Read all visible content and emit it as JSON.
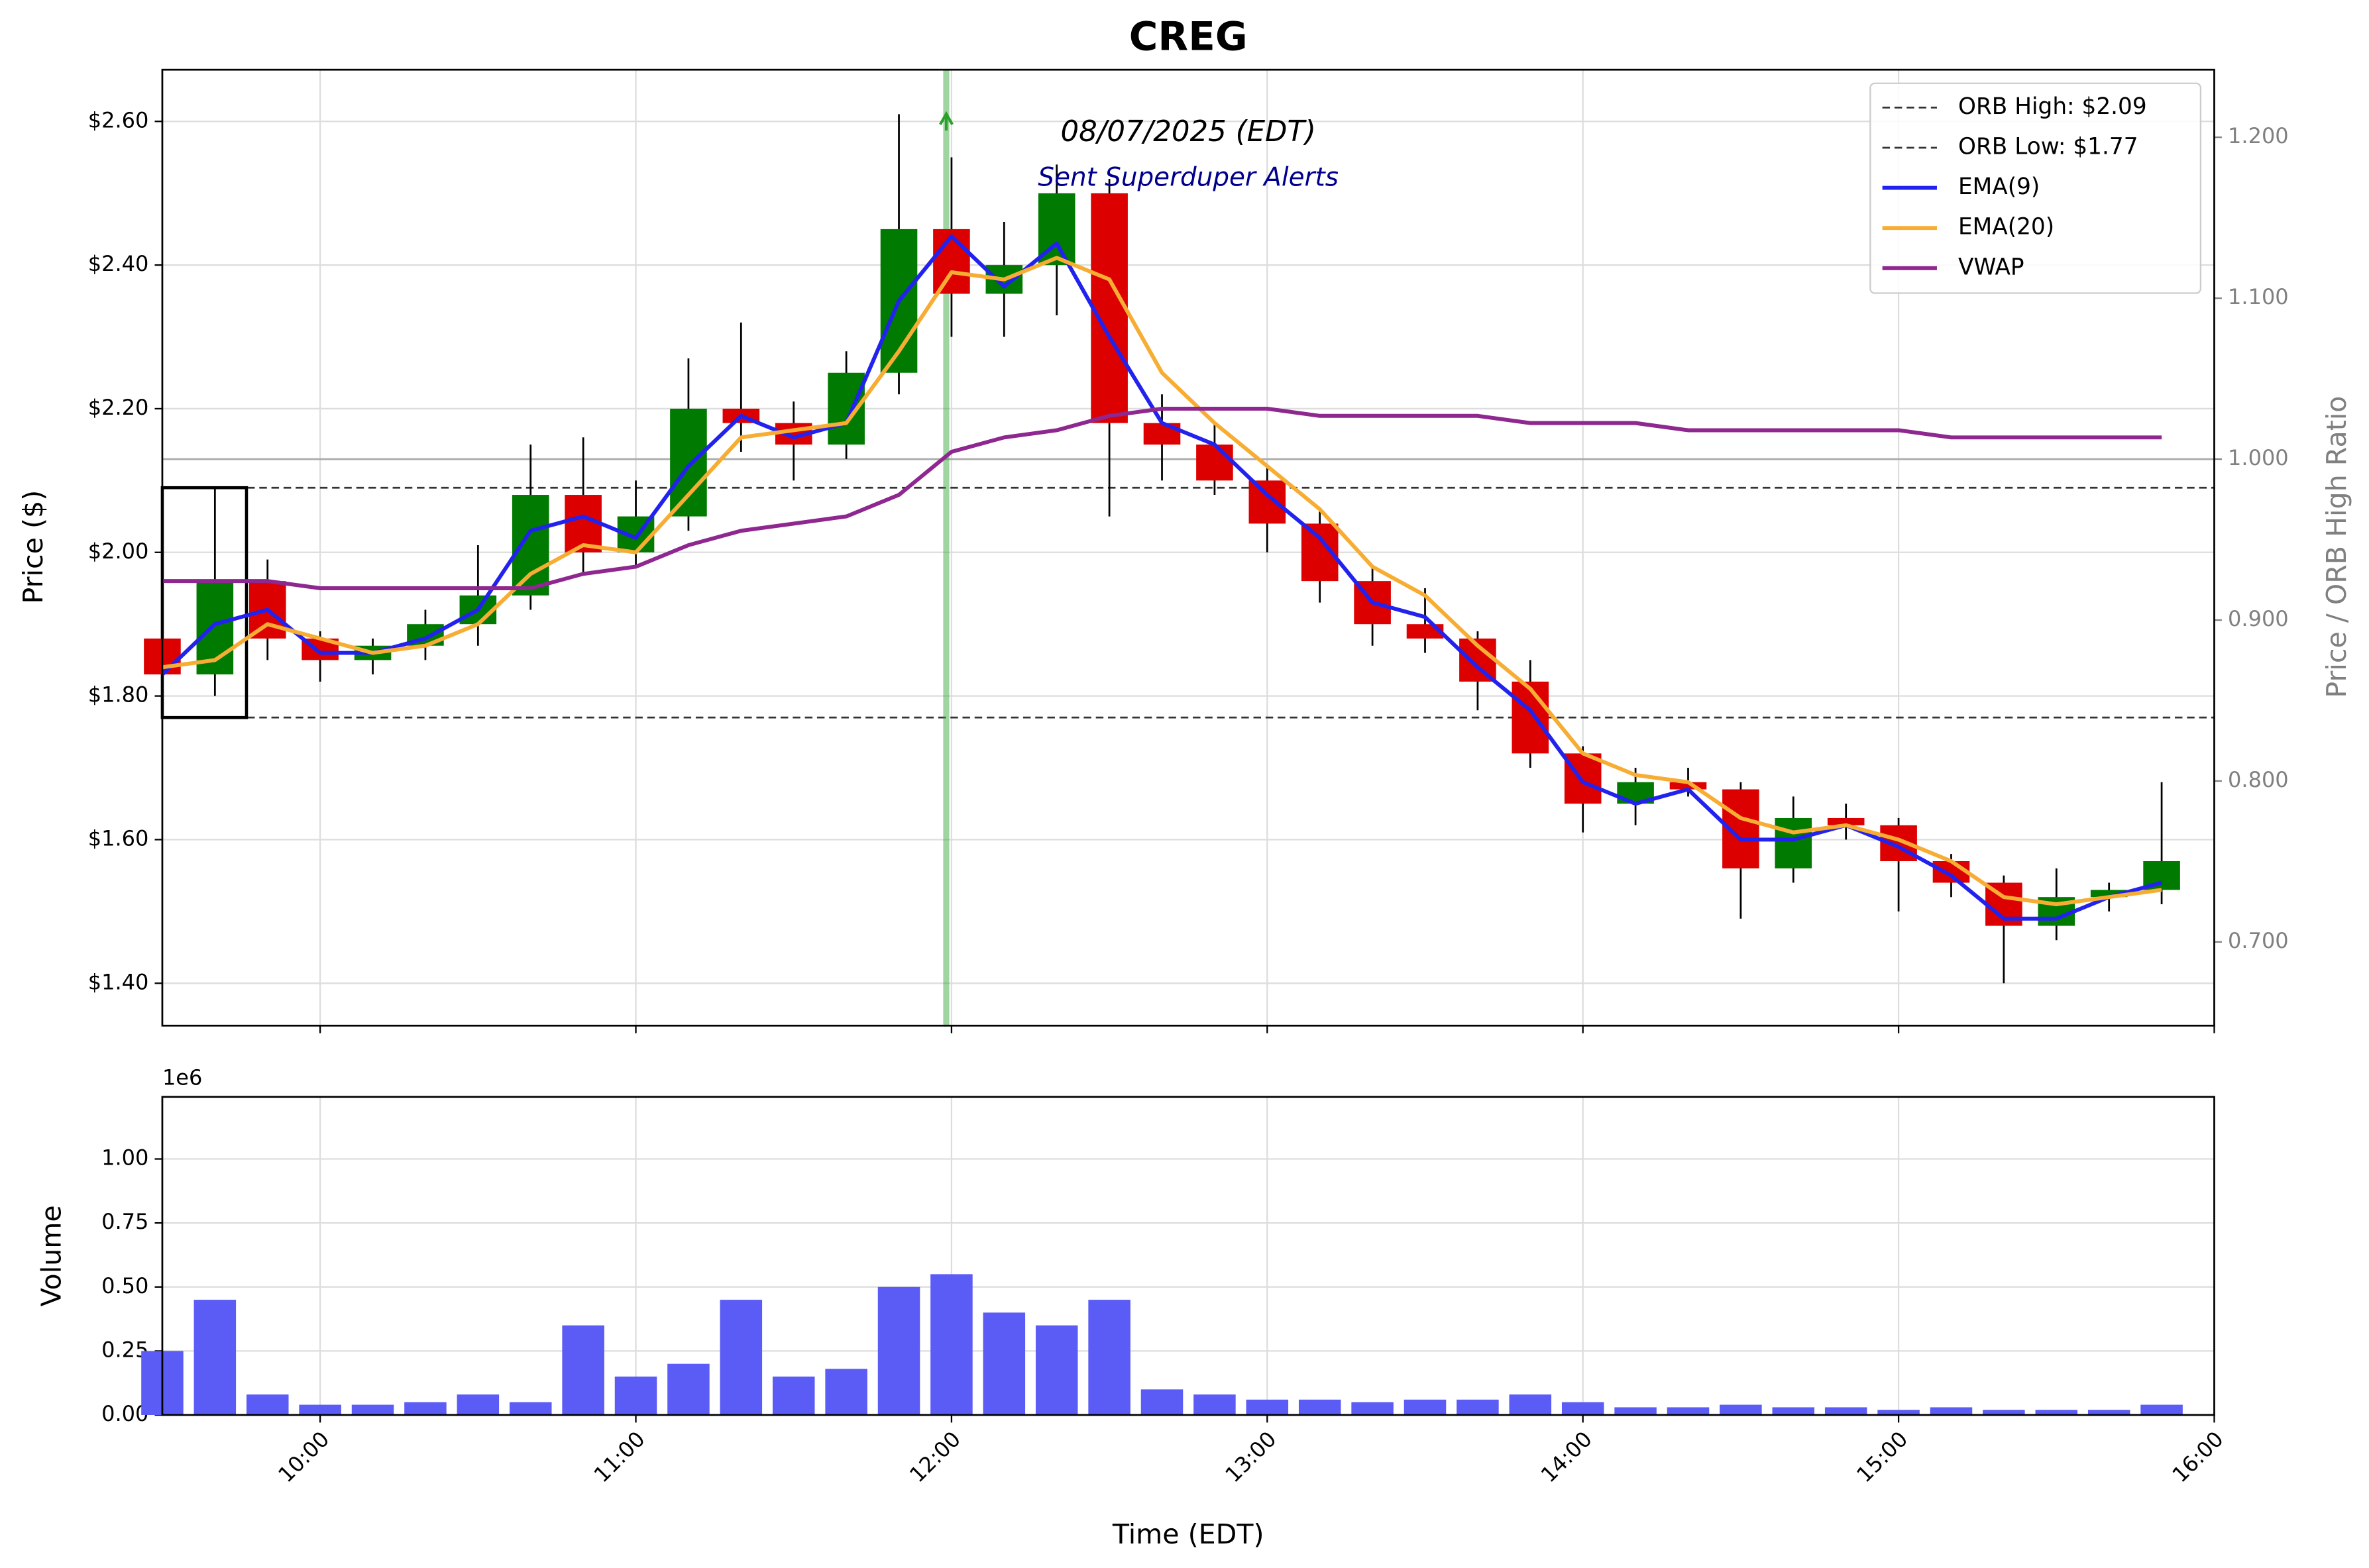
{
  "chart_data": [
    {
      "type": "candlestick",
      "title": "CREG",
      "annotation": "08/07/2025 (EDT)",
      "subannotation": "Sent Superduper Alerts",
      "ylabel": "Price ($)",
      "y2label": "Price / ORB High Ratio",
      "x": [
        "09:30",
        "09:40",
        "09:50",
        "10:00",
        "10:10",
        "10:20",
        "10:30",
        "10:40",
        "10:50",
        "11:00",
        "11:10",
        "11:20",
        "11:30",
        "11:40",
        "11:50",
        "12:00",
        "12:10",
        "12:20",
        "12:30",
        "12:40",
        "12:50",
        "13:00",
        "13:10",
        "13:20",
        "13:30",
        "13:40",
        "13:50",
        "14:00",
        "14:10",
        "14:20",
        "14:30",
        "14:40",
        "14:50",
        "15:00",
        "15:10",
        "15:20",
        "15:30",
        "15:40",
        "15:50"
      ],
      "open": [
        1.88,
        1.83,
        1.96,
        1.88,
        1.85,
        1.87,
        1.9,
        1.94,
        2.08,
        2.0,
        2.05,
        2.2,
        2.18,
        2.15,
        2.25,
        2.45,
        2.36,
        2.4,
        2.5,
        2.18,
        2.15,
        2.1,
        2.04,
        1.96,
        1.9,
        1.88,
        1.82,
        1.72,
        1.65,
        1.68,
        1.67,
        1.56,
        1.63,
        1.62,
        1.57,
        1.54,
        1.48,
        1.52,
        1.53
      ],
      "high": [
        1.93,
        2.09,
        1.99,
        1.89,
        1.88,
        1.92,
        2.01,
        2.15,
        2.16,
        2.1,
        2.27,
        2.32,
        2.21,
        2.28,
        2.61,
        2.55,
        2.46,
        2.54,
        2.52,
        2.22,
        2.18,
        2.12,
        2.06,
        1.98,
        1.95,
        1.89,
        1.85,
        1.73,
        1.7,
        1.7,
        1.68,
        1.66,
        1.65,
        1.63,
        1.58,
        1.55,
        1.56,
        1.54,
        1.68
      ],
      "low": [
        1.8,
        1.8,
        1.85,
        1.82,
        1.83,
        1.85,
        1.87,
        1.92,
        1.97,
        1.98,
        2.03,
        2.14,
        2.1,
        2.13,
        2.22,
        2.3,
        2.3,
        2.33,
        2.05,
        2.1,
        2.08,
        2.0,
        1.93,
        1.87,
        1.86,
        1.78,
        1.7,
        1.61,
        1.62,
        1.66,
        1.49,
        1.54,
        1.6,
        1.5,
        1.52,
        1.4,
        1.46,
        1.5,
        1.51
      ],
      "close": [
        1.83,
        1.96,
        1.88,
        1.85,
        1.87,
        1.9,
        1.94,
        2.08,
        2.0,
        2.05,
        2.2,
        2.18,
        2.15,
        2.25,
        2.45,
        2.36,
        2.4,
        2.5,
        2.18,
        2.15,
        2.1,
        2.04,
        1.96,
        1.9,
        1.88,
        1.82,
        1.72,
        1.65,
        1.68,
        1.67,
        1.56,
        1.63,
        1.62,
        1.57,
        1.54,
        1.48,
        1.52,
        1.53,
        1.57
      ],
      "up_color": "#007a00",
      "down_color": "#dd0000",
      "wick_color": "#000000",
      "series": [
        {
          "name": "EMA(9)",
          "color": "#2222ee",
          "values": [
            1.83,
            1.9,
            1.92,
            1.86,
            1.86,
            1.88,
            1.92,
            2.03,
            2.05,
            2.02,
            2.12,
            2.19,
            2.16,
            2.18,
            2.35,
            2.44,
            2.37,
            2.43,
            2.3,
            2.18,
            2.15,
            2.08,
            2.02,
            1.93,
            1.91,
            1.84,
            1.78,
            1.68,
            1.65,
            1.67,
            1.6,
            1.6,
            1.62,
            1.59,
            1.55,
            1.49,
            1.49,
            1.52,
            1.54
          ]
        },
        {
          "name": "EMA(20)",
          "color": "#f7ad33",
          "values": [
            1.84,
            1.85,
            1.9,
            1.88,
            1.86,
            1.87,
            1.9,
            1.97,
            2.01,
            2.0,
            2.08,
            2.16,
            2.17,
            2.18,
            2.28,
            2.39,
            2.38,
            2.41,
            2.38,
            2.25,
            2.18,
            2.12,
            2.06,
            1.98,
            1.94,
            1.87,
            1.81,
            1.72,
            1.69,
            1.68,
            1.63,
            1.61,
            1.62,
            1.6,
            1.57,
            1.52,
            1.51,
            1.52,
            1.53
          ]
        },
        {
          "name": "VWAP",
          "color": "#8e278f",
          "values": [
            1.96,
            1.96,
            1.96,
            1.95,
            1.95,
            1.95,
            1.95,
            1.95,
            1.97,
            1.98,
            2.01,
            2.03,
            2.04,
            2.05,
            2.08,
            2.14,
            2.16,
            2.17,
            2.19,
            2.2,
            2.2,
            2.2,
            2.19,
            2.19,
            2.19,
            2.19,
            2.18,
            2.18,
            2.18,
            2.17,
            2.17,
            2.17,
            2.17,
            2.17,
            2.16,
            2.16,
            2.16,
            2.16,
            2.16
          ]
        }
      ],
      "hlines": [
        {
          "name": "ORB High: $2.09",
          "value": 2.09,
          "color": "#333333"
        },
        {
          "name": "ORB Low: $1.77",
          "value": 1.77,
          "color": "#333333"
        }
      ],
      "y2_refline": 1.0,
      "orb_box": {
        "x": [
          "09:30",
          "09:46"
        ],
        "y": [
          1.77,
          2.09
        ]
      },
      "alert": {
        "x": "11:59",
        "y": 2.6,
        "color": "#2ca02c"
      },
      "xlim": [
        "09:30",
        "16:00"
      ],
      "xticks": [
        "10:00",
        "11:00",
        "12:00",
        "13:00",
        "14:00",
        "15:00",
        "16:00"
      ],
      "ylim": [
        1.341,
        2.672
      ],
      "yticks": [
        {
          "value": 1.4,
          "label": "$1.40"
        },
        {
          "value": 1.6,
          "label": "$1.60"
        },
        {
          "value": 1.8,
          "label": "$1.80"
        },
        {
          "value": 2.0,
          "label": "$2.00"
        },
        {
          "value": 2.2,
          "label": "$2.20"
        },
        {
          "value": 2.4,
          "label": "$2.40"
        },
        {
          "value": 2.6,
          "label": "$2.60"
        }
      ],
      "y2lim": [
        0.648,
        1.242
      ],
      "y2ticks": [
        {
          "value": 0.7,
          "label": "0.700"
        },
        {
          "value": 0.8,
          "label": "0.800"
        },
        {
          "value": 0.9,
          "label": "0.900"
        },
        {
          "value": 1.0,
          "label": "1.000"
        },
        {
          "value": 1.1,
          "label": "1.100"
        },
        {
          "value": 1.2,
          "label": "1.200"
        }
      ],
      "grid": true,
      "legend": "upper right"
    },
    {
      "type": "bar",
      "xlabel": "Time (EDT)",
      "ylabel": "Volume",
      "offset_text": "1e6",
      "x": [
        "09:30",
        "09:40",
        "09:50",
        "10:00",
        "10:10",
        "10:20",
        "10:30",
        "10:40",
        "10:50",
        "11:00",
        "11:10",
        "11:20",
        "11:30",
        "11:40",
        "11:50",
        "12:00",
        "12:10",
        "12:20",
        "12:30",
        "12:40",
        "12:50",
        "13:00",
        "13:10",
        "13:20",
        "13:30",
        "13:40",
        "13:50",
        "14:00",
        "14:10",
        "14:20",
        "14:30",
        "14:40",
        "14:50",
        "15:00",
        "15:10",
        "15:20",
        "15:30",
        "15:40",
        "15:50"
      ],
      "values": [
        0.25,
        0.45,
        0.08,
        0.04,
        0.04,
        0.05,
        0.08,
        0.05,
        0.35,
        0.15,
        0.2,
        0.45,
        0.15,
        0.18,
        0.5,
        0.55,
        0.4,
        0.35,
        0.45,
        0.1,
        0.08,
        0.06,
        0.06,
        0.05,
        0.06,
        0.06,
        0.08,
        0.05,
        0.03,
        0.03,
        0.04,
        0.03,
        0.03,
        0.02,
        0.03,
        0.02,
        0.02,
        0.02,
        0.04
      ],
      "color": "#5b5bf5",
      "xlim": [
        "09:30",
        "16:00"
      ],
      "xticks": [
        "10:00",
        "11:00",
        "12:00",
        "13:00",
        "14:00",
        "15:00",
        "16:00"
      ],
      "ylim": [
        0,
        1.2426
      ],
      "yticks": [
        {
          "value": 0,
          "label": "0.00"
        },
        {
          "value": 0.25,
          "label": "0.25"
        },
        {
          "value": 0.5,
          "label": "0.50"
        },
        {
          "value": 0.75,
          "label": "0.75"
        },
        {
          "value": 1.0,
          "label": "1.00"
        }
      ],
      "grid": true
    }
  ]
}
